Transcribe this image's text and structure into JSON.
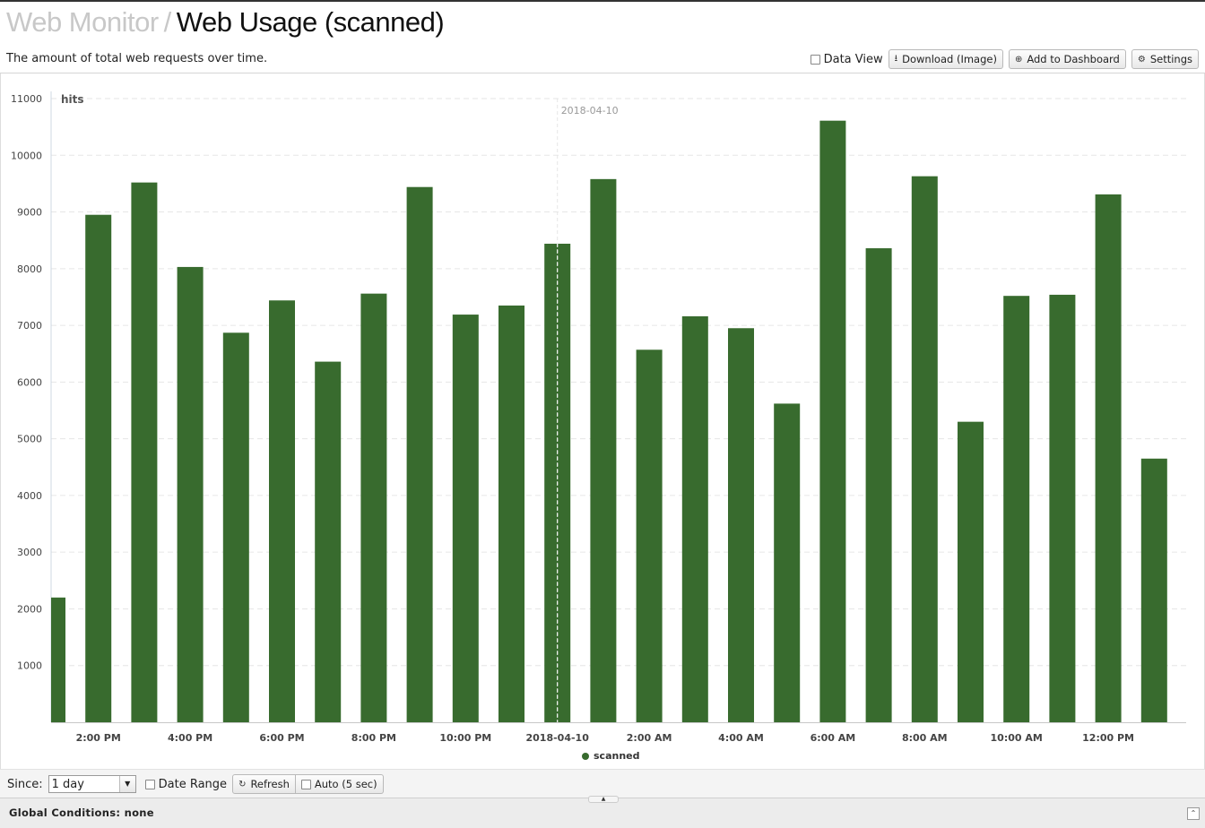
{
  "header": {
    "breadcrumb_parent": "Web Monitor",
    "separator": "/",
    "title": "Web Usage (scanned)",
    "description": "The amount of total web requests over time."
  },
  "toolbar": {
    "data_view_label": "Data View",
    "download_label": "Download (Image)",
    "add_dashboard_label": "Add to Dashboard",
    "settings_label": "Settings"
  },
  "controls": {
    "since_label": "Since:",
    "since_value": "1 day",
    "date_range_label": "Date Range",
    "refresh_label": "Refresh",
    "auto_label": "Auto (5 sec)"
  },
  "global_conditions": "Global Conditions: none",
  "colors": {
    "bar": "#386b2e",
    "grid": "#e6e6e6"
  },
  "chart_data": {
    "type": "bar",
    "ylabel": "hits",
    "ylim": [
      0,
      11000
    ],
    "yticks": [
      1000,
      2000,
      3000,
      4000,
      5000,
      6000,
      7000,
      8000,
      9000,
      10000,
      11000
    ],
    "x_tick_labels": [
      "2:00 PM",
      "4:00 PM",
      "6:00 PM",
      "8:00 PM",
      "10:00 PM",
      "2018-04-10",
      "2:00 AM",
      "4:00 AM",
      "6:00 AM",
      "8:00 AM",
      "10:00 AM",
      "12:00 PM"
    ],
    "date_marker": "2018-04-10",
    "legend_position": "bottom-center",
    "grid": true,
    "series": [
      {
        "name": "scanned",
        "color": "#386b2e",
        "values": [
          2200,
          8950,
          9520,
          8030,
          6870,
          7440,
          6360,
          7560,
          9440,
          7190,
          7350,
          8440,
          9580,
          6570,
          7160,
          6950,
          5620,
          10610,
          8360,
          9630,
          5300,
          7520,
          7540,
          9310,
          4650
        ]
      }
    ]
  }
}
